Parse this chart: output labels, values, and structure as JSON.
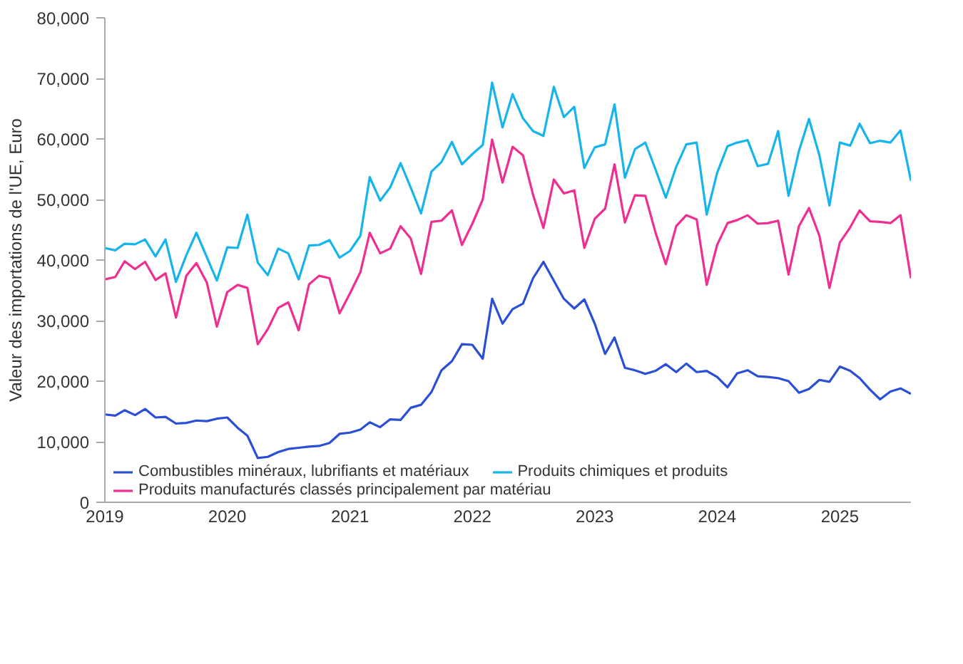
{
  "chart_data": {
    "type": "line",
    "ylabel": "Valeur des importations de l'UE, Euro",
    "x": [
      "2019-01",
      "2019-02",
      "2019-03",
      "2019-04",
      "2019-05",
      "2019-06",
      "2019-07",
      "2019-08",
      "2019-09",
      "2019-10",
      "2019-11",
      "2019-12",
      "2020-01",
      "2020-02",
      "2020-03",
      "2020-04",
      "2020-05",
      "2020-06",
      "2020-07",
      "2020-08",
      "2020-09",
      "2020-10",
      "2020-11",
      "2020-12",
      "2021-01",
      "2021-02",
      "2021-03",
      "2021-04",
      "2021-05",
      "2021-06",
      "2021-07",
      "2021-08",
      "2021-09",
      "2021-10",
      "2021-11",
      "2021-12",
      "2022-01",
      "2022-02",
      "2022-03",
      "2022-04",
      "2022-05",
      "2022-06",
      "2022-07",
      "2022-08",
      "2022-09",
      "2022-10",
      "2022-11",
      "2022-12",
      "2023-01",
      "2023-02",
      "2023-03",
      "2023-04",
      "2023-05",
      "2023-06",
      "2023-07",
      "2023-08",
      "2023-09",
      "2023-10",
      "2023-11",
      "2023-12",
      "2024-01",
      "2024-02",
      "2024-03",
      "2024-04",
      "2024-05",
      "2024-06",
      "2024-07",
      "2024-08",
      "2024-09",
      "2024-10",
      "2024-11",
      "2024-12",
      "2025-01",
      "2025-02",
      "2025-03",
      "2025-04",
      "2025-05",
      "2025-06",
      "2025-07",
      "2025-08"
    ],
    "series": [
      {
        "name": "Combustibles minéraux, lubrifiants et matériaux",
        "color": "#2a4fd6",
        "values": [
          14500,
          14300,
          15200,
          14400,
          15400,
          14000,
          14100,
          13000,
          13100,
          13500,
          13400,
          13800,
          14000,
          12300,
          11000,
          7300,
          7500,
          8300,
          8800,
          9000,
          9200,
          9300,
          9800,
          11300,
          11500,
          12000,
          13200,
          12400,
          13700,
          13600,
          15600,
          16100,
          18200,
          21800,
          23300,
          26100,
          26000,
          23700,
          33600,
          29500,
          31900,
          32800,
          37000,
          39700,
          36600,
          33600,
          32000,
          33500,
          29500,
          24500,
          27200,
          22200,
          21800,
          21200,
          21700,
          22800,
          21500,
          22900,
          21500,
          21700,
          20700,
          19000,
          21300,
          21800,
          20800,
          20700,
          20500,
          20000,
          18100,
          18700,
          20200,
          19900,
          22400,
          21700,
          20500,
          18600,
          17000,
          18300,
          18800,
          17900
        ]
      },
      {
        "name": "Produits chimiques et produits",
        "color": "#16b4ec",
        "values": [
          42000,
          41600,
          42700,
          42600,
          43400,
          40600,
          43400,
          36400,
          40800,
          44500,
          40500,
          36600,
          42100,
          42000,
          47500,
          39600,
          37500,
          41900,
          41100,
          36800,
          42400,
          42500,
          43300,
          40400,
          41500,
          44000,
          53700,
          49800,
          52000,
          56000,
          52000,
          47700,
          54600,
          56200,
          59500,
          55800,
          57500,
          59000,
          69300,
          61900,
          67400,
          63400,
          61300,
          60500,
          68600,
          63600,
          65300,
          55200,
          58600,
          59100,
          65700,
          53600,
          58300,
          59400,
          55000,
          50300,
          55400,
          59100,
          59400,
          47500,
          54400,
          58800,
          59400,
          59800,
          55500,
          55900,
          61300,
          50600,
          58000,
          63300,
          57300,
          49000,
          59400,
          58900,
          62500,
          59300,
          59700,
          59400,
          61400,
          53100
        ]
      },
      {
        "name": "Produits manufacturés classés principalement par matériau",
        "color": "#f02e91",
        "values": [
          36800,
          37200,
          39800,
          38500,
          39700,
          36700,
          37800,
          30500,
          37400,
          39500,
          36300,
          29000,
          34700,
          35900,
          35400,
          26100,
          28600,
          32100,
          33000,
          28400,
          36000,
          37400,
          37000,
          31200,
          34500,
          38000,
          44500,
          41100,
          41900,
          45600,
          43600,
          37700,
          46300,
          46500,
          48200,
          42500,
          46000,
          50000,
          59900,
          52800,
          58700,
          57300,
          50800,
          45300,
          53300,
          51000,
          51500,
          42000,
          46800,
          48500,
          55800,
          46200,
          50700,
          50600,
          44600,
          39300,
          45600,
          47400,
          46700,
          35900,
          42500,
          46100,
          46600,
          47400,
          46000,
          46100,
          46500,
          37600,
          45600,
          48600,
          44000,
          35400,
          42900,
          45400,
          48200,
          46400,
          46300,
          46100,
          47400,
          37000
        ]
      }
    ],
    "xlim": [
      "2019-01",
      "2025-08"
    ],
    "xticks": [
      {
        "value": "2019-01",
        "label": "2019"
      },
      {
        "value": "2020-01",
        "label": "2020"
      },
      {
        "value": "2021-01",
        "label": "2021"
      },
      {
        "value": "2022-01",
        "label": "2022"
      },
      {
        "value": "2023-01",
        "label": "2023"
      },
      {
        "value": "2024-01",
        "label": "2024"
      },
      {
        "value": "2025-01",
        "label": "2025"
      }
    ],
    "ylim": [
      0,
      80000
    ],
    "yticks": [
      {
        "value": 0,
        "label": "0"
      },
      {
        "value": 10000,
        "label": "10,000"
      },
      {
        "value": 20000,
        "label": "20,000"
      },
      {
        "value": 30000,
        "label": "30,000"
      },
      {
        "value": 40000,
        "label": "40,000"
      },
      {
        "value": 50000,
        "label": "50,000"
      },
      {
        "value": 60000,
        "label": "60,000"
      },
      {
        "value": 70000,
        "label": "70,000"
      },
      {
        "value": 80000,
        "label": "80,000"
      }
    ],
    "grid": false,
    "legend": "bottom",
    "marker": "none",
    "line_style": "solid"
  }
}
